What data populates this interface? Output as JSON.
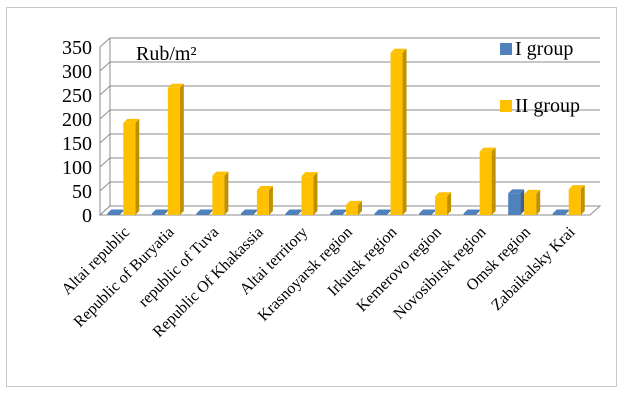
{
  "chart_data": {
    "type": "bar",
    "unit_label": "Rub/m²",
    "categories": [
      "Altai republic",
      "Republic of Buryatia",
      "republic of Tuva",
      "Republic Of Khakassia",
      "Altai territory",
      "Krasnoyarsk region",
      "Irkutsk region",
      "Kemerovo region",
      "Novosibirsk region",
      "Omsk region",
      "Zabaikalsky Krai"
    ],
    "series": [
      {
        "name": "I group",
        "color": "#4f81bd",
        "values": [
          0,
          0,
          0,
          0,
          0,
          0,
          0,
          0,
          0,
          45,
          0
        ]
      },
      {
        "name": "II group",
        "color": "#ffc000",
        "values": [
          192,
          265,
          82,
          52,
          81,
          21,
          338,
          39,
          132,
          44,
          54
        ]
      }
    ],
    "ylim": [
      0,
      350
    ],
    "yticks": [
      "0",
      "50",
      "100",
      "150",
      "200",
      "250",
      "300",
      "350"
    ],
    "grid": true,
    "legend_position": "right"
  }
}
